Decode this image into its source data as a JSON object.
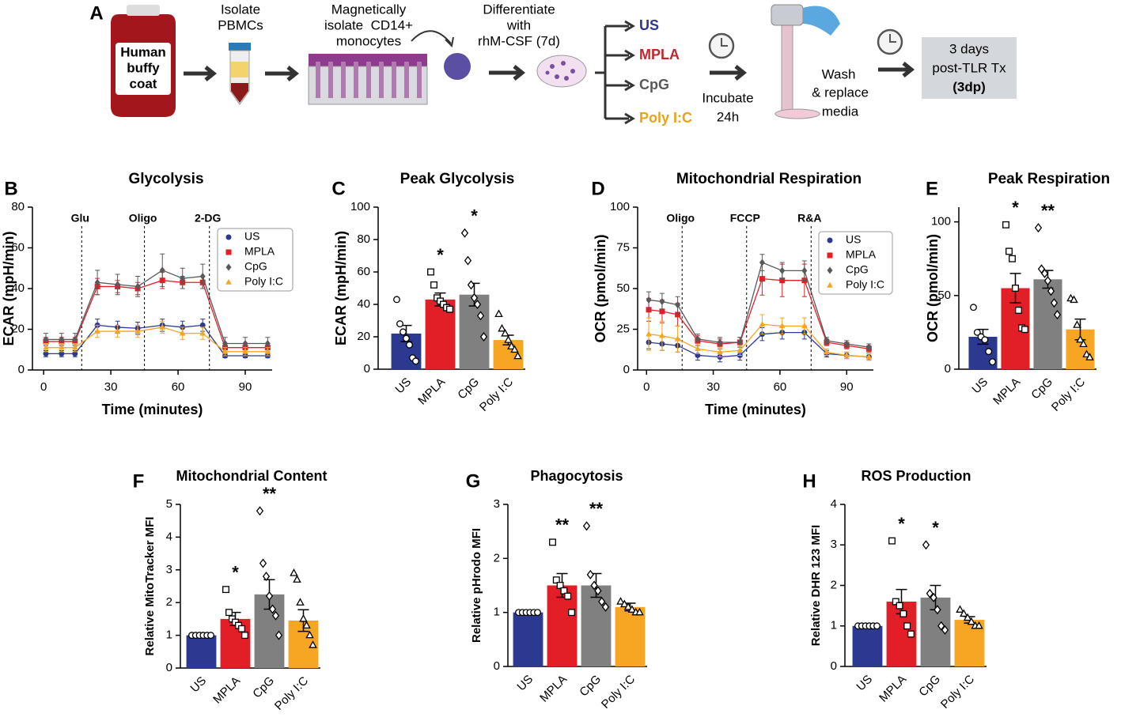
{
  "diagram": {
    "panel": "A",
    "buffy_coat": [
      "Human",
      "buffy",
      "coat"
    ],
    "step1": [
      "Isolate",
      "PBMCs"
    ],
    "step2": [
      "Magnetically",
      "isolate  CD14+",
      "monocytes"
    ],
    "step3": [
      "Differentiate",
      "with",
      "rhM-CSF (7d)"
    ],
    "treatments": [
      "US",
      "MPLA",
      "CpG",
      "Poly I:C"
    ],
    "treatment_colors": [
      "#2b3990",
      "#c1272d",
      "#58595b",
      "#e8a317"
    ],
    "incubate": [
      "Incubate",
      "24h"
    ],
    "wash": [
      "Wash",
      "& replace",
      "media"
    ],
    "result": [
      "3 days",
      "post-TLR Tx",
      "(3dp)"
    ]
  },
  "chart_data": [
    {
      "panel": "B",
      "type": "line",
      "title": "Glycolysis",
      "x_label": "Time (minutes)",
      "y_label": "ECAR (mpH/min)",
      "x": [
        1,
        8,
        14,
        24,
        33,
        42,
        53,
        62,
        71,
        81,
        90,
        100
      ],
      "xlim": [
        -5,
        102
      ],
      "xticks": [
        0,
        30,
        60,
        90
      ],
      "ylim": [
        0,
        80
      ],
      "yticks": [
        0,
        20,
        40,
        60,
        80
      ],
      "events": [
        {
          "x": 17,
          "label": "Glu"
        },
        {
          "x": 45,
          "label": "Oligo"
        },
        {
          "x": 74,
          "label": "2-DG"
        }
      ],
      "legend": "upper right",
      "series": [
        {
          "name": "US",
          "color": "#2b3990",
          "marker": "circle",
          "values": [
            8,
            8,
            8,
            22,
            21,
            20.5,
            22,
            21,
            22,
            7,
            7,
            7
          ],
          "errors": [
            1.5,
            1.5,
            1.5,
            3,
            3,
            3,
            3,
            3,
            3,
            1,
            1,
            1
          ]
        },
        {
          "name": "MPLA",
          "color": "#e21f26",
          "marker": "square",
          "values": [
            14,
            14,
            14,
            41,
            41,
            40,
            44,
            43,
            43,
            11,
            11,
            11
          ],
          "errors": [
            2,
            2,
            2,
            4,
            3,
            3,
            4,
            3,
            3,
            2,
            2,
            2
          ]
        },
        {
          "name": "CpG",
          "color": "#58595b",
          "marker": "diamond",
          "values": [
            15,
            15,
            15,
            43,
            42,
            41,
            49,
            45,
            46,
            13,
            13,
            13
          ],
          "errors": [
            3,
            3,
            3,
            6,
            5,
            5,
            8,
            5,
            6,
            3,
            3,
            3
          ]
        },
        {
          "name": "Poly I:C",
          "color": "#f6a623",
          "marker": "triangle",
          "values": [
            11,
            11,
            11,
            19,
            19,
            19,
            21,
            18,
            18,
            9,
            9,
            9
          ],
          "errors": [
            2,
            2,
            2,
            3,
            3,
            3,
            3,
            3,
            3,
            2,
            2,
            2
          ]
        }
      ]
    },
    {
      "panel": "C",
      "type": "bar",
      "title": "Peak Glycolysis",
      "y_label": "ECAR (mpH/min)",
      "categories": [
        "US",
        "MPLA",
        "CpG",
        "Poly I:C"
      ],
      "colors": [
        "#2b3990",
        "#e21f26",
        "#808080",
        "#f6a623"
      ],
      "point_markers": [
        "circle",
        "square",
        "diamond",
        "triangle"
      ],
      "values": [
        22,
        43,
        46,
        18
      ],
      "errors": [
        5,
        4,
        7,
        3
      ],
      "points": [
        [
          43,
          28,
          23,
          19,
          15,
          7,
          5
        ],
        [
          60,
          52,
          44,
          42,
          40,
          38,
          37
        ],
        [
          84,
          67,
          52,
          44,
          40,
          33,
          20
        ],
        [
          34,
          25,
          22,
          18,
          14,
          12,
          8
        ]
      ],
      "annotations": [
        null,
        "*",
        "*",
        null
      ],
      "ylim": [
        0,
        100
      ],
      "yticks": [
        0,
        20,
        40,
        60,
        80,
        100
      ]
    },
    {
      "panel": "D",
      "type": "line",
      "title": "Mitochondrial Respiration",
      "x_label": "Time (minutes)",
      "y_label": "OCR (pmol/min)",
      "x": [
        1,
        7,
        14,
        23,
        33,
        42,
        52,
        61,
        71,
        81,
        90,
        100
      ],
      "xlim": [
        -4,
        102
      ],
      "xticks": [
        0,
        30,
        60,
        90
      ],
      "ylim": [
        0,
        100
      ],
      "yticks": [
        0,
        25,
        50,
        75,
        100
      ],
      "events": [
        {
          "x": 16,
          "label": "Oligo"
        },
        {
          "x": 45,
          "label": "FCCP"
        },
        {
          "x": 74,
          "label": "R&A"
        }
      ],
      "legend": "upper right",
      "series": [
        {
          "name": "US",
          "color": "#2b3990",
          "marker": "circle",
          "values": [
            17,
            16,
            15,
            9,
            8,
            9,
            22,
            23,
            23,
            10,
            9,
            8
          ],
          "errors": [
            4,
            4,
            4,
            3,
            3,
            3,
            4,
            4,
            4,
            2,
            2,
            2
          ]
        },
        {
          "name": "MPLA",
          "color": "#e21f26",
          "marker": "square",
          "values": [
            37,
            36,
            34,
            18,
            16,
            17,
            56,
            55,
            55,
            17,
            15,
            13
          ],
          "errors": [
            7,
            7,
            7,
            3,
            3,
            3,
            10,
            10,
            10,
            2,
            2,
            2
          ]
        },
        {
          "name": "CpG",
          "color": "#58595b",
          "marker": "diamond",
          "values": [
            43,
            42,
            40,
            19,
            17,
            17,
            66,
            61,
            61,
            18,
            16,
            14
          ],
          "errors": [
            5,
            5,
            5,
            3,
            3,
            3,
            5,
            5,
            6,
            2,
            2,
            2
          ]
        },
        {
          "name": "Poly I:C",
          "color": "#f6a623",
          "marker": "triangle",
          "values": [
            22,
            21,
            19,
            13,
            11,
            12,
            28,
            27,
            27,
            11,
            9,
            8
          ],
          "errors": [
            10,
            9,
            8,
            3,
            3,
            3,
            6,
            5,
            5,
            2,
            2,
            2
          ]
        }
      ]
    },
    {
      "panel": "E",
      "type": "bar",
      "title": "Peak Respiration",
      "y_label": "OCR (pmol/min)",
      "categories": [
        "US",
        "MPLA",
        "CpG",
        "Poly I:C"
      ],
      "colors": [
        "#2b3990",
        "#e21f26",
        "#808080",
        "#f6a623"
      ],
      "point_markers": [
        "circle",
        "square",
        "diamond",
        "triangle"
      ],
      "values": [
        22,
        55,
        61,
        27
      ],
      "errors": [
        5,
        10,
        6,
        7
      ],
      "points": [
        [
          42,
          25,
          22,
          20,
          12,
          5
        ],
        [
          98,
          80,
          75,
          55,
          40,
          28,
          27
        ],
        [
          96,
          68,
          65,
          60,
          53,
          45,
          37
        ],
        [
          48,
          47,
          30,
          20,
          17,
          10,
          8
        ]
      ],
      "annotations": [
        null,
        "*",
        "**",
        null
      ],
      "ylim": [
        0,
        110
      ],
      "yticks": [
        0,
        50,
        100
      ]
    },
    {
      "panel": "F",
      "type": "bar",
      "title": "Mitochondrial Content",
      "y_label": "Relative MitoTracker MFI",
      "categories": [
        "US",
        "MPLA",
        "CpG",
        "Poly I:C"
      ],
      "colors": [
        "#2b3990",
        "#e21f26",
        "#808080",
        "#f6a623"
      ],
      "point_markers": [
        "circle",
        "square",
        "diamond",
        "triangle"
      ],
      "values": [
        1,
        1.5,
        2.25,
        1.45
      ],
      "errors": [
        0,
        0.2,
        0.45,
        0.33
      ],
      "points": [
        [
          1,
          1,
          1,
          1,
          1,
          1
        ],
        [
          2.4,
          1.7,
          1.5,
          1.4,
          1.3,
          1.2,
          1
        ],
        [
          4.8,
          3.2,
          2.8,
          2.2,
          1.8,
          1.6,
          1
        ],
        [
          2.9,
          2.7,
          2,
          1.5,
          1.3,
          1,
          0.7
        ]
      ],
      "annotations": [
        null,
        "*",
        "**",
        null
      ],
      "ylim": [
        0,
        5
      ],
      "yticks": [
        0,
        1,
        2,
        3,
        4,
        5
      ]
    },
    {
      "panel": "G",
      "type": "bar",
      "title": "Phagocytosis",
      "y_label": "Relative pHrodo MFI",
      "categories": [
        "US",
        "MPLA",
        "CpG",
        "Poly I:C"
      ],
      "colors": [
        "#2b3990",
        "#e21f26",
        "#808080",
        "#f6a623"
      ],
      "point_markers": [
        "circle",
        "square",
        "diamond",
        "triangle"
      ],
      "values": [
        1,
        1.5,
        1.5,
        1.1
      ],
      "errors": [
        0,
        0.22,
        0.22,
        0.07
      ],
      "points": [
        [
          1,
          1,
          1,
          1,
          1,
          1
        ],
        [
          2.3,
          1.6,
          1.5,
          1.4,
          1.3,
          1
        ],
        [
          2.6,
          1.7,
          1.5,
          1.4,
          1.2,
          1.1
        ],
        [
          1.2,
          1.15,
          1.1,
          1.05,
          1,
          1
        ]
      ],
      "annotations": [
        null,
        "**",
        "**",
        null
      ],
      "ylim": [
        0,
        3
      ],
      "yticks": [
        0,
        1,
        2,
        3
      ]
    },
    {
      "panel": "H",
      "type": "bar",
      "title": "ROS Production",
      "y_label": "Relative DHR 123 MFI",
      "categories": [
        "US",
        "MPLA",
        "CpG",
        "Poly I:C"
      ],
      "colors": [
        "#2b3990",
        "#e21f26",
        "#808080",
        "#f6a623"
      ],
      "point_markers": [
        "circle",
        "square",
        "diamond",
        "triangle"
      ],
      "values": [
        1,
        1.6,
        1.7,
        1.15
      ],
      "errors": [
        0,
        0.3,
        0.3,
        0.08
      ],
      "points": [
        [
          1,
          1,
          1,
          1,
          1,
          1
        ],
        [
          3.1,
          1.6,
          1.5,
          1.3,
          1,
          0.8
        ],
        [
          3,
          1.8,
          1.7,
          1.4,
          1,
          0.9
        ],
        [
          1.4,
          1.3,
          1.2,
          1.1,
          1,
          1
        ]
      ],
      "annotations": [
        null,
        "*",
        "*",
        null
      ],
      "ylim": [
        0,
        4
      ],
      "yticks": [
        0,
        1,
        2,
        3,
        4
      ]
    }
  ]
}
